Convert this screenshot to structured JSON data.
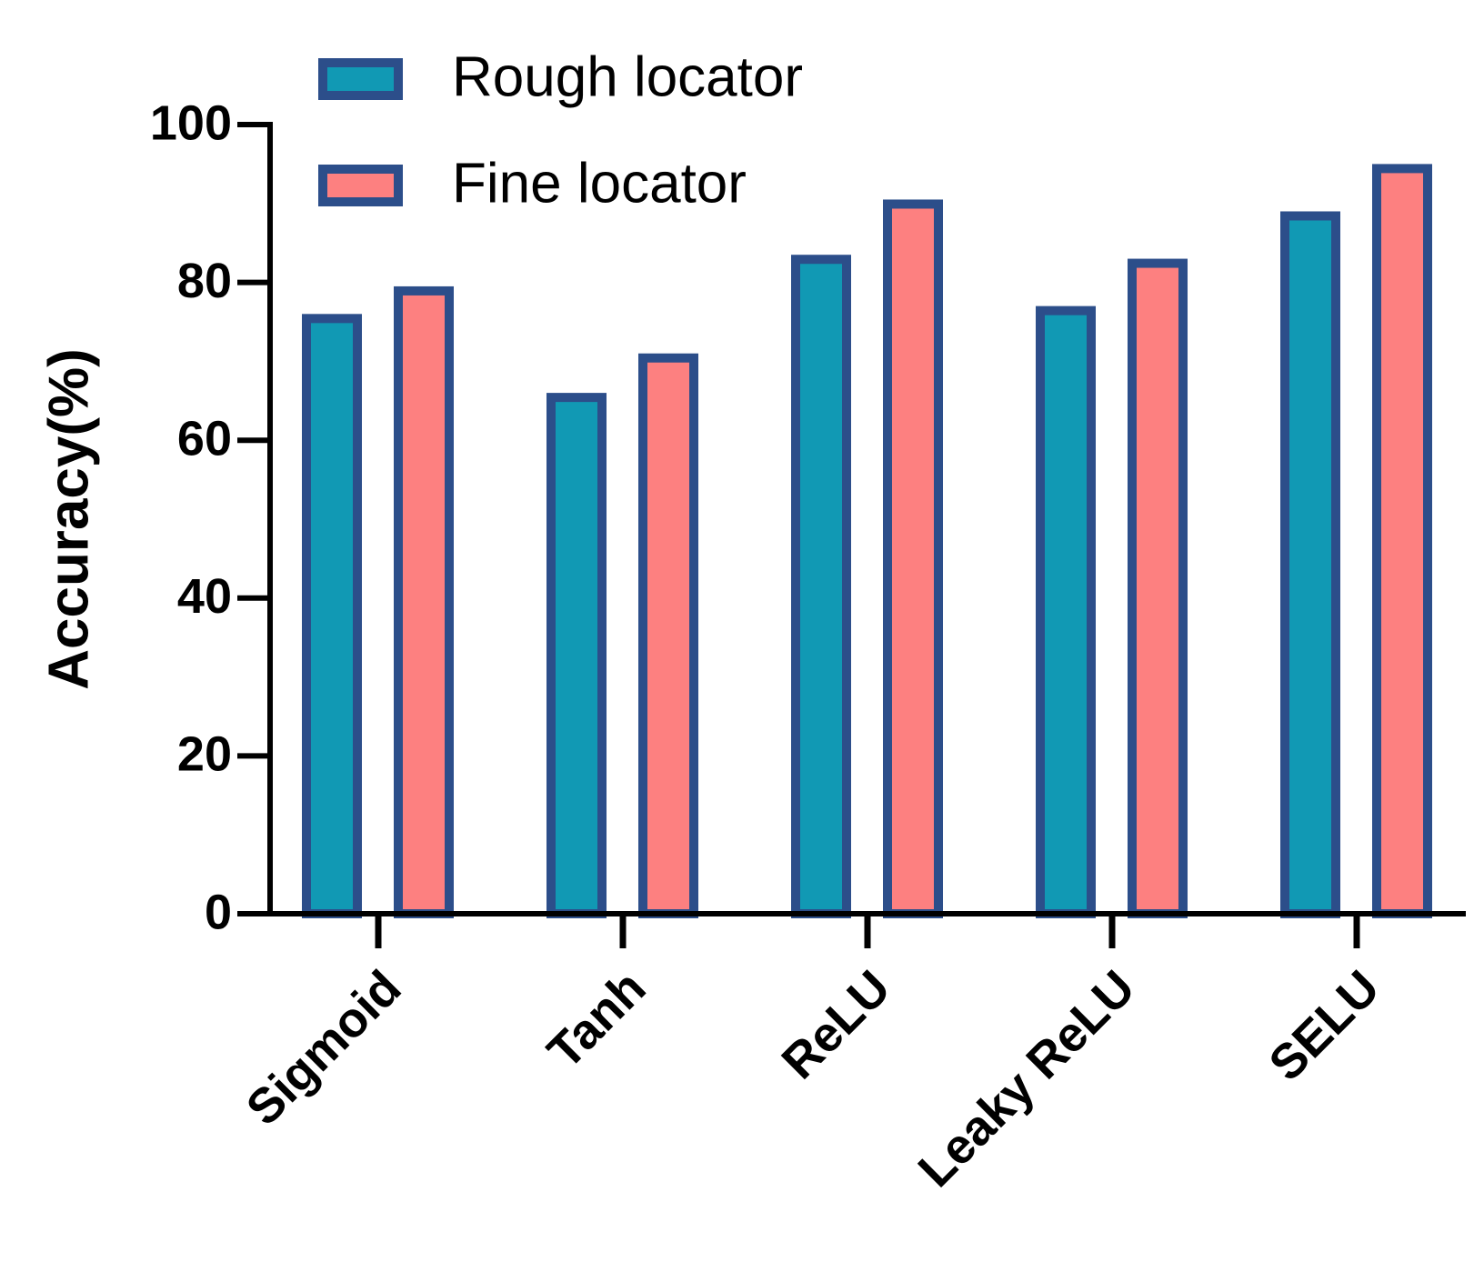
{
  "chart_data": {
    "type": "bar",
    "y_label": "Accuracy(%)",
    "categories": [
      "Sigmoid",
      "Tanh",
      "ReLU",
      "Leaky ReLU",
      "SELU"
    ],
    "series": [
      {
        "name": "Rough locator",
        "color": "#1199b4",
        "values": [
          76,
          66,
          83.5,
          77,
          89
        ]
      },
      {
        "name": "Fine locator",
        "color": "#fd8080",
        "values": [
          79.5,
          71,
          90.5,
          83,
          95
        ]
      }
    ],
    "edge_color": "#2c4e8a",
    "ylim": [
      0,
      100
    ],
    "yticks": [
      0,
      20,
      40,
      60,
      80,
      100
    ],
    "grid": false,
    "legend": "top-left"
  }
}
